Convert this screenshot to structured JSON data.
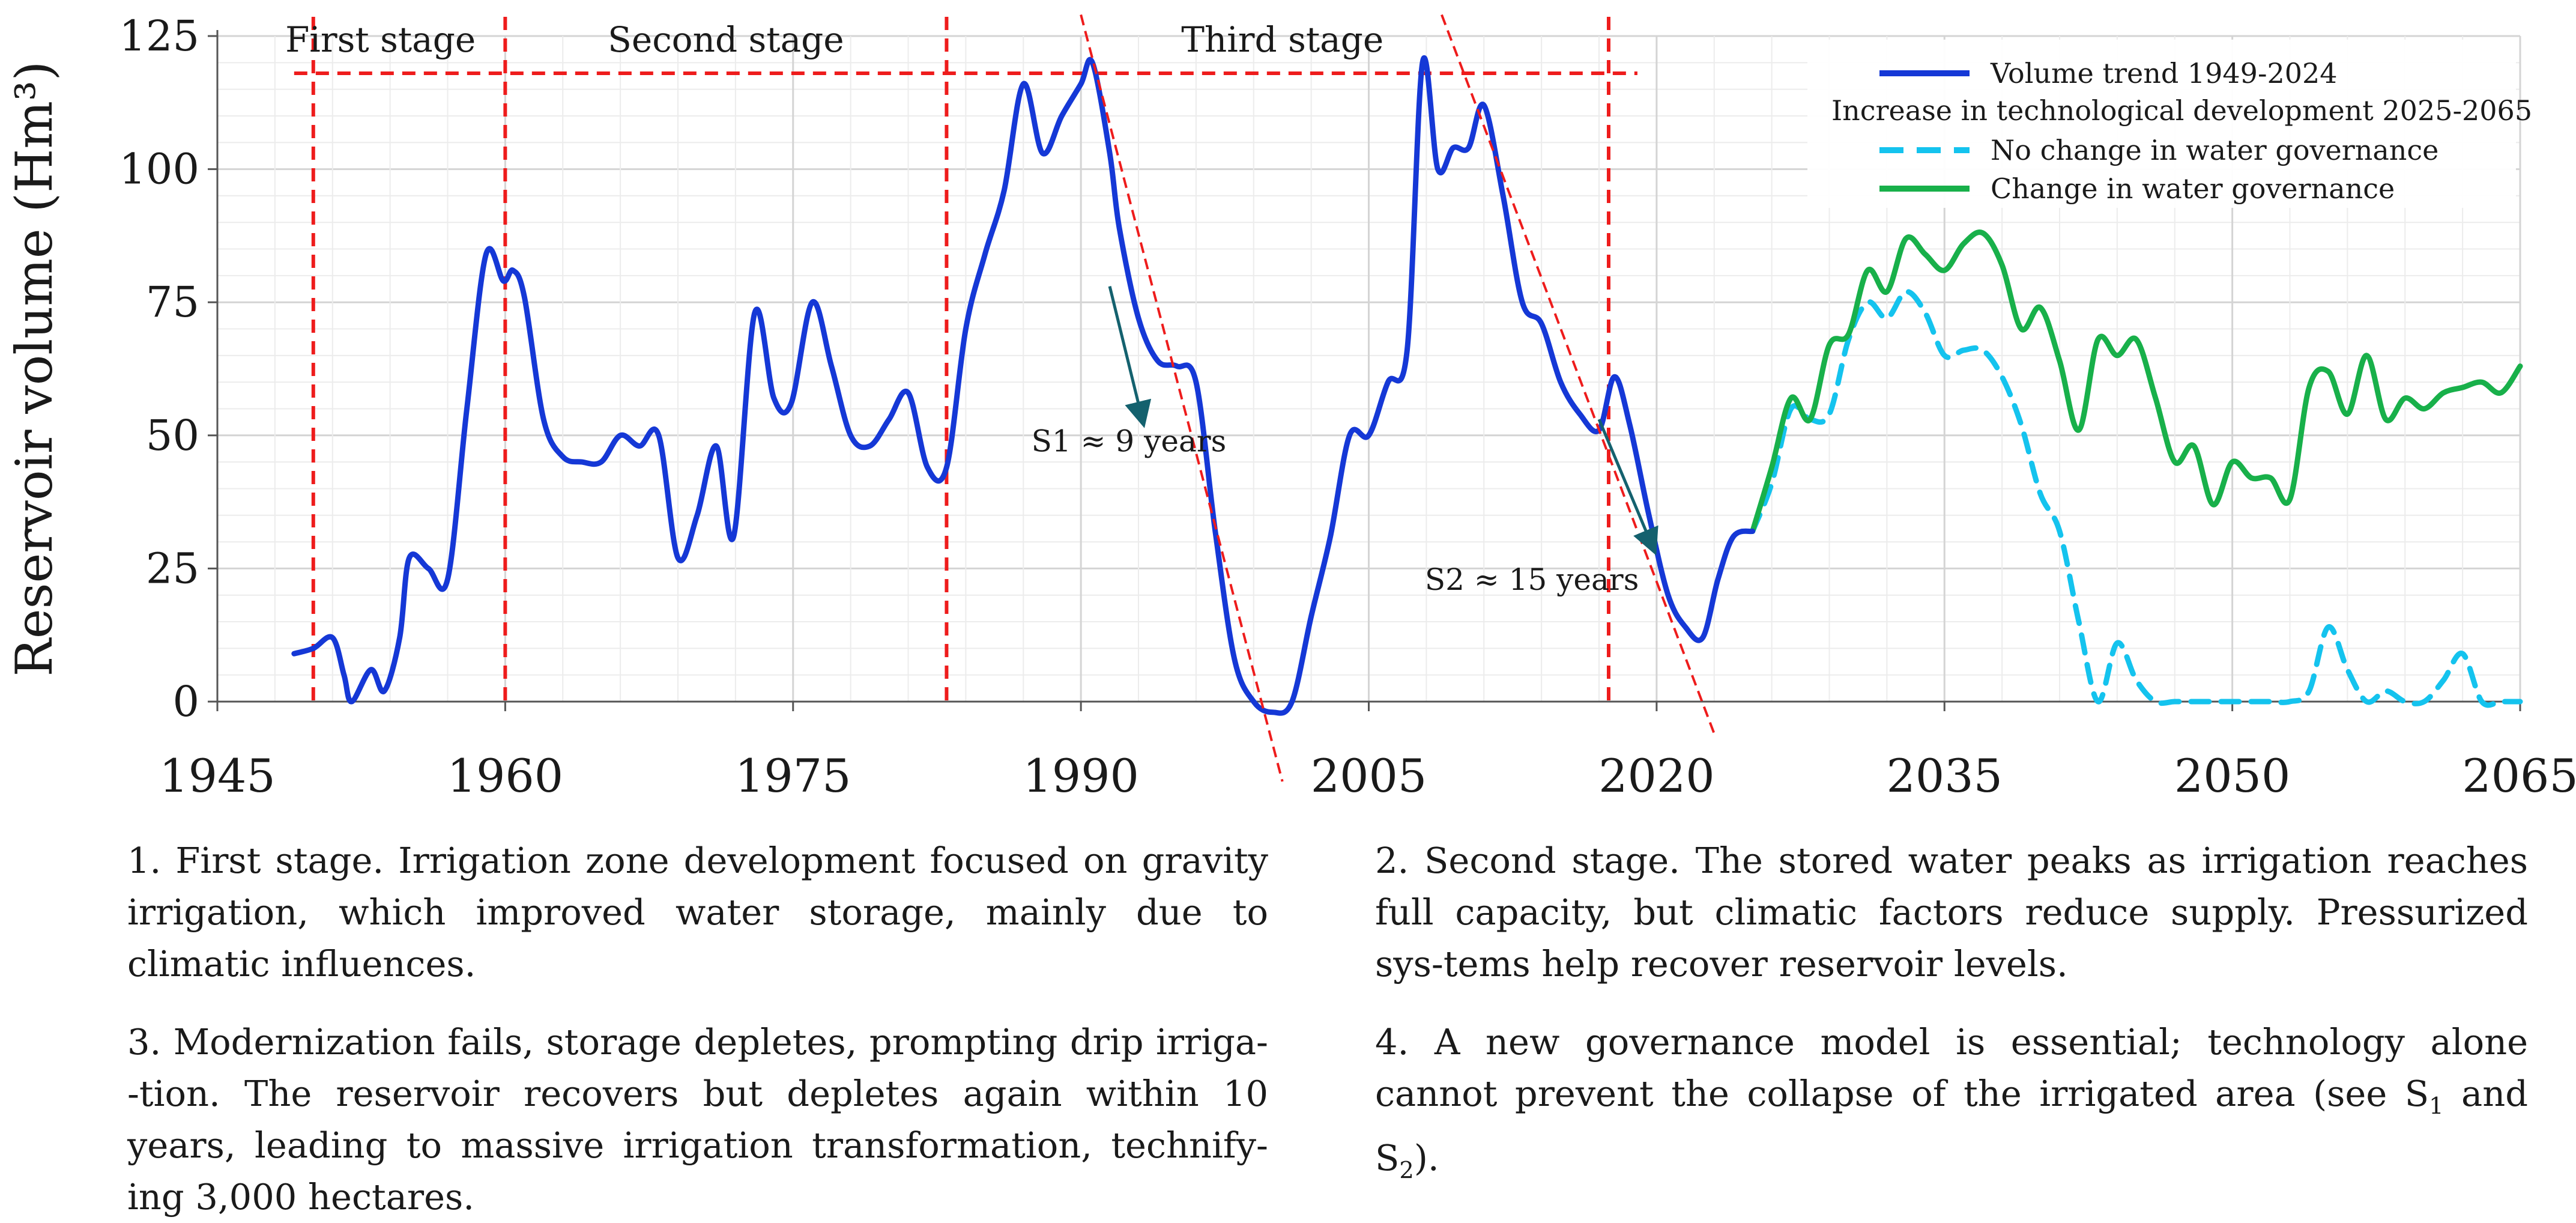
{
  "chart_data": {
    "type": "line",
    "ylabel": "Reservoir volume (Hm³)",
    "xlim": [
      1945,
      2065
    ],
    "ylim": [
      0,
      125
    ],
    "x_ticks": [
      "1945",
      "1960",
      "1975",
      "1990",
      "2005",
      "2020",
      "2035",
      "2050",
      "2065"
    ],
    "y_ticks": [
      "0",
      "25",
      "50",
      "75",
      "100",
      "125"
    ],
    "grid": true,
    "legend_position": "top-right",
    "legend": {
      "observed": "Volume trend 1949-2024",
      "header": "Increase in technological development 2025-2065",
      "no_change": "No change in water governance",
      "change": "Change in water governance"
    },
    "colors": {
      "observed": "#1538d6",
      "no_change": "#14c3ee",
      "change": "#18b04a",
      "stages": "#ee1c1c",
      "arrows": "#14616e",
      "grid": "#dcdcdc"
    },
    "stages": {
      "labels": [
        "First stage",
        "Second stage",
        "Third stage"
      ],
      "boundaries": [
        1950,
        1960,
        1983,
        2017.5
      ],
      "line_y": 118,
      "labels_x": [
        1953.5,
        1971.5,
        2000.5
      ],
      "line_x_range": [
        1949,
        2019
      ]
    },
    "slope_lines": [
      {
        "label": "S1 ≈ 9 years",
        "from": [
          1990,
          129
        ],
        "to": [
          2000.5,
          -15
        ],
        "label_at": [
          1992.5,
          47
        ],
        "arrow_from": [
          1991.5,
          78
        ],
        "arrow_to": [
          1993.2,
          53
        ]
      },
      {
        "label": "S2 ≈ 15 years",
        "from": [
          2008.8,
          129
        ],
        "to": [
          2023,
          -6
        ],
        "label_at": [
          2013.5,
          21
        ],
        "arrow_from": [
          2017,
          53
        ],
        "arrow_to": [
          2019.8,
          29
        ]
      }
    ],
    "series": [
      {
        "name": "Volume trend 1949-2024",
        "style": "solid",
        "x": [
          1949,
          1950,
          1951,
          1951.6,
          1952,
          1953,
          1953.7,
          1954.5,
          1955,
          1956,
          1957,
          1958,
          1959,
          1959.9,
          1960.4,
          1961,
          1962,
          1963,
          1964,
          1965,
          1966,
          1967,
          1968,
          1969,
          1970,
          1971,
          1971.9,
          1973,
          1974,
          1974.9,
          1976,
          1977,
          1978,
          1979,
          1980,
          1981,
          1982,
          1983,
          1984,
          1985,
          1986,
          1987,
          1988,
          1989,
          1990,
          1990.6,
          1991.5,
          1992,
          1993,
          1994,
          1995,
          1996,
          1997,
          1998,
          1999,
          2000,
          2001,
          2002,
          2003,
          2004,
          2005,
          2006,
          2007,
          2007.8,
          2008.6,
          2009.4,
          2010.2,
          2011,
          2012,
          2013,
          2014,
          2015,
          2016,
          2017,
          2017.8,
          2018.6,
          2019.6,
          2020.6,
          2021.5,
          2022.4,
          2023.2,
          2024,
          2025
        ],
        "y": [
          9,
          10,
          12,
          5,
          0,
          6,
          2,
          12,
          27,
          25,
          23,
          55,
          84,
          79,
          81,
          76,
          53,
          46,
          45,
          45,
          50,
          48,
          50,
          27,
          35,
          48,
          31,
          73,
          57,
          56,
          75,
          63,
          50,
          48,
          53,
          58,
          44,
          44,
          70,
          84,
          96,
          116,
          103,
          110,
          116,
          120,
          103,
          89,
          72,
          64,
          63,
          60,
          32,
          8,
          0,
          -2,
          0,
          16,
          31,
          50,
          50,
          60,
          66,
          120,
          100,
          104,
          104,
          112,
          95,
          75,
          71,
          60,
          54,
          51,
          61,
          52,
          35,
          20,
          14,
          12,
          23,
          31,
          32
        ]
      },
      {
        "name": "No change in water governance",
        "style": "dashed",
        "x": [
          2025,
          2026,
          2027,
          2028,
          2029,
          2030,
          2031,
          2032,
          2033,
          2034,
          2035,
          2036,
          2037,
          2038,
          2039,
          2040,
          2041,
          2042,
          2043,
          2044,
          2045,
          2046,
          2047,
          2048,
          2049,
          2050,
          2051,
          2052,
          2053,
          2054,
          2055,
          2056,
          2057,
          2058,
          2059,
          2060,
          2061,
          2062,
          2063,
          2064,
          2065
        ],
        "y": [
          32,
          41,
          55,
          53,
          54,
          68,
          75,
          72,
          77,
          73,
          65,
          66,
          66,
          61,
          52,
          39,
          32,
          15,
          0,
          11,
          4,
          0,
          0,
          0,
          0,
          0,
          0,
          0,
          0,
          2,
          14,
          6,
          0,
          2,
          0,
          0,
          4,
          9,
          0,
          0,
          0
        ]
      },
      {
        "name": "Change in water governance",
        "style": "solid",
        "x": [
          2025,
          2026,
          2027,
          2028,
          2029,
          2030,
          2031,
          2032,
          2033,
          2034,
          2035,
          2036,
          2037,
          2038,
          2039,
          2040,
          2041,
          2042,
          2043,
          2044,
          2045,
          2046,
          2047,
          2048,
          2049,
          2050,
          2051,
          2052,
          2053,
          2054,
          2055,
          2056,
          2057,
          2058,
          2059,
          2060,
          2061,
          2062,
          2063,
          2064,
          2065
        ],
        "y": [
          32,
          44,
          57,
          53,
          67,
          69,
          81,
          77,
          87,
          84,
          81,
          86,
          88,
          82,
          70,
          74,
          64,
          51,
          68,
          65,
          68,
          57,
          45,
          48,
          37,
          45,
          42,
          42,
          38,
          59,
          62,
          54,
          65,
          53,
          57,
          55,
          58,
          59,
          60,
          58,
          63
        ]
      }
    ]
  },
  "notes": {
    "n1": "1. First stage. Irrigation zone development focused on gravity irrigation, which improved water storage, mainly due to climatic influences.",
    "n2": "2. Second stage. The stored water peaks as irrigation reaches full capacity, but climatic factors reduce supply. Pressurized sys-tems help recover reservoir levels.",
    "n3": "3. Modernization fails, storage depletes, prompting drip irriga--tion. The reservoir recovers but depletes again within 10 years, leading to massive irrigation transformation, technify-ing 3,000 hectares.",
    "n4_main": "4. A new governance model is essential; technology alone cannot prevent the collapse of the irrigated area (see S",
    "n4_sub1": "1",
    "n4_and": " and S",
    "n4_sub2": "2",
    "n4_end": ")."
  }
}
